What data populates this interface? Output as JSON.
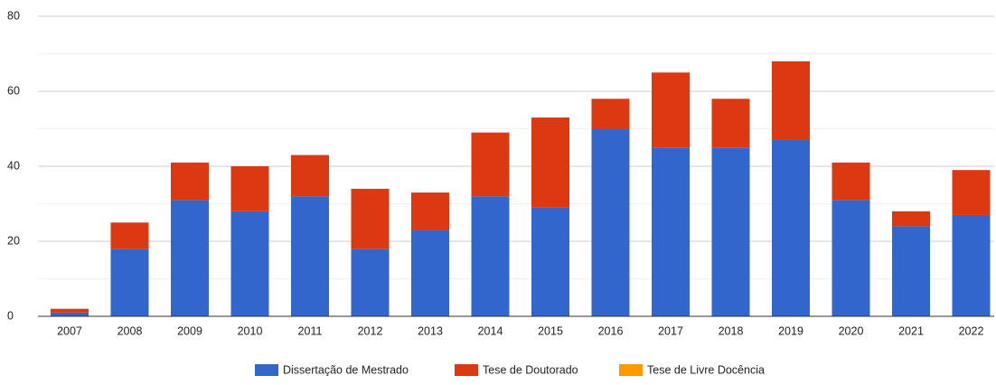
{
  "chart_data": {
    "type": "stacked_bar",
    "categories": [
      "2007",
      "2008",
      "2009",
      "2010",
      "2011",
      "2012",
      "2013",
      "2014",
      "2015",
      "2016",
      "2017",
      "2018",
      "2019",
      "2020",
      "2021",
      "2022"
    ],
    "series": [
      {
        "name": "Dissertação de Mestrado",
        "color": "#3366cc",
        "values": [
          1,
          18,
          31,
          28,
          32,
          18,
          23,
          32,
          29,
          50,
          45,
          45,
          47,
          31,
          24,
          27
        ]
      },
      {
        "name": "Tese de Doutorado",
        "color": "#dc3912",
        "values": [
          1,
          7,
          10,
          12,
          11,
          16,
          10,
          17,
          24,
          8,
          20,
          13,
          21,
          10,
          4,
          12
        ]
      },
      {
        "name": "Tese de Livre Docência",
        "color": "#ff9900",
        "values": [
          0,
          0,
          0,
          0,
          0,
          0,
          0,
          0,
          0,
          0,
          0,
          0,
          0,
          0,
          0,
          0
        ]
      }
    ],
    "ylim": [
      0,
      80
    ],
    "yticks": [
      0,
      20,
      40,
      60,
      80
    ],
    "grid": true,
    "legend": "bottom"
  }
}
